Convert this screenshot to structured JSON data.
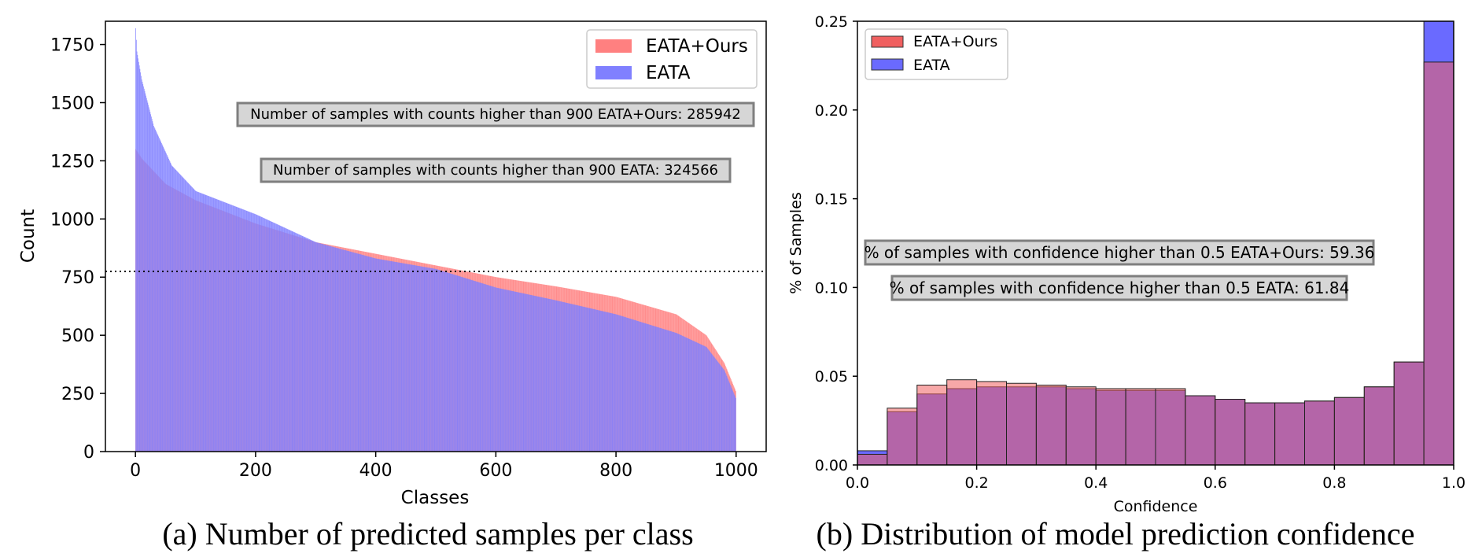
{
  "chart_data": [
    {
      "id": "a",
      "type": "bar",
      "title": "",
      "caption": "(a) Number of predicted samples per class",
      "xlabel": "Classes",
      "ylabel": "Count",
      "xlim": [
        -50,
        1050
      ],
      "ylim": [
        0,
        1850
      ],
      "xticks": [
        0,
        200,
        400,
        600,
        800,
        1000
      ],
      "yticks": [
        0,
        250,
        500,
        750,
        1000,
        1250,
        1500,
        1750
      ],
      "num_classes": 1000,
      "threshold_line": 800,
      "series": [
        {
          "name": "EATA+Ours",
          "color": "#ff8080",
          "sorted_curve_points": [
            [
              0,
              1300
            ],
            [
              10,
              1260
            ],
            [
              50,
              1150
            ],
            [
              100,
              1080
            ],
            [
              200,
              980
            ],
            [
              300,
              900
            ],
            [
              400,
              850
            ],
            [
              500,
              800
            ],
            [
              600,
              750
            ],
            [
              700,
              710
            ],
            [
              800,
              665
            ],
            [
              900,
              590
            ],
            [
              950,
              500
            ],
            [
              980,
              380
            ],
            [
              999,
              260
            ]
          ]
        },
        {
          "name": "EATA",
          "color": "#8080ff",
          "sorted_curve_points": [
            [
              0,
              1820
            ],
            [
              2,
              1720
            ],
            [
              10,
              1600
            ],
            [
              30,
              1400
            ],
            [
              60,
              1230
            ],
            [
              100,
              1120
            ],
            [
              200,
              1020
            ],
            [
              300,
              900
            ],
            [
              400,
              830
            ],
            [
              500,
              785
            ],
            [
              600,
              705
            ],
            [
              700,
              650
            ],
            [
              800,
              590
            ],
            [
              900,
              510
            ],
            [
              950,
              450
            ],
            [
              980,
              350
            ],
            [
              999,
              230
            ]
          ]
        }
      ],
      "legend": [
        "EATA+Ours",
        "EATA"
      ],
      "legend_position": "top-right",
      "annotations": [
        "Number of samples with counts higher than 900 EATA+Ours: 285942",
        "Number of samples with counts higher than 900 EATA: 324566"
      ]
    },
    {
      "id": "b",
      "type": "histogram",
      "title": "",
      "caption": "(b) Distribution of model prediction confidence",
      "xlabel": "Confidence",
      "ylabel": "% of Samples",
      "xlim": [
        0.0,
        1.0
      ],
      "ylim": [
        0.0,
        0.25
      ],
      "xticks": [
        "0.0",
        "0.2",
        "0.4",
        "0.6",
        "0.8",
        "1.0"
      ],
      "yticks": [
        "0.00",
        "0.05",
        "0.10",
        "0.15",
        "0.20",
        "0.25"
      ],
      "bin_edges": [
        0.0,
        0.05,
        0.1,
        0.15,
        0.2,
        0.25,
        0.3,
        0.35,
        0.4,
        0.45,
        0.5,
        0.55,
        0.6,
        0.65,
        0.7,
        0.75,
        0.8,
        0.85,
        0.9,
        0.95,
        1.0
      ],
      "series": [
        {
          "name": "EATA+Ours",
          "color": "#f06060",
          "values": [
            0.006,
            0.032,
            0.045,
            0.048,
            0.047,
            0.046,
            0.045,
            0.044,
            0.043,
            0.043,
            0.043,
            0.039,
            0.037,
            0.035,
            0.035,
            0.036,
            0.038,
            0.044,
            0.058,
            0.227
          ]
        },
        {
          "name": "EATA",
          "color": "#6a6aff",
          "values": [
            0.008,
            0.03,
            0.04,
            0.043,
            0.044,
            0.044,
            0.044,
            0.043,
            0.042,
            0.042,
            0.042,
            0.039,
            0.037,
            0.035,
            0.035,
            0.036,
            0.038,
            0.044,
            0.058,
            0.25
          ]
        }
      ],
      "legend": [
        "EATA+Ours",
        "EATA"
      ],
      "legend_position": "top-left",
      "annotations": [
        "% of samples with confidence higher than 0.5 EATA+Ours: 59.36",
        "% of samples with confidence higher than 0.5 EATA: 61.84"
      ]
    }
  ]
}
